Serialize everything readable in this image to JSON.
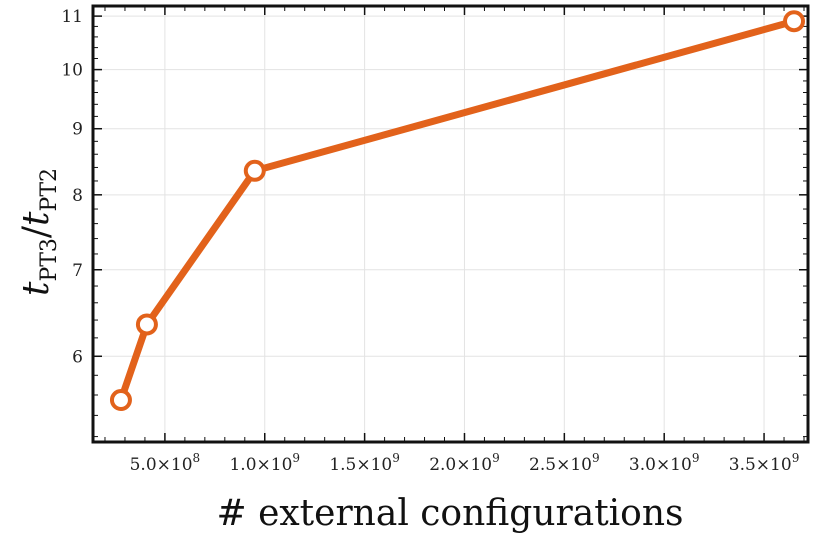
{
  "chart_data": {
    "type": "line",
    "title": "",
    "xlabel": "# external configurations",
    "ylabel": {
      "main": "t",
      "numerator_sub": "PT3",
      "slash": "/",
      "denominator_sub": "PT2"
    },
    "x": [
      280000000,
      410000000,
      950000000,
      3650000000
    ],
    "series": [
      {
        "values": [
          5.55,
          6.35,
          8.35,
          10.9
        ]
      }
    ],
    "xlim": [
      140000000,
      3720000000
    ],
    "ylim": [
      5.15,
      11.2
    ],
    "y_scale": "log",
    "grid": true,
    "color": "#e2621b",
    "x_ticks": [
      {
        "value": 500000000,
        "mantissa": "5.0",
        "exp": "8"
      },
      {
        "value": 1000000000,
        "mantissa": "1.0",
        "exp": "9"
      },
      {
        "value": 1500000000,
        "mantissa": "1.5",
        "exp": "9"
      },
      {
        "value": 2000000000,
        "mantissa": "2.0",
        "exp": "9"
      },
      {
        "value": 2500000000,
        "mantissa": "2.5",
        "exp": "9"
      },
      {
        "value": 3000000000,
        "mantissa": "3.0",
        "exp": "9"
      },
      {
        "value": 3500000000,
        "mantissa": "3.5",
        "exp": "9"
      }
    ],
    "times_sign": "×",
    "base": "10",
    "y_ticks": [
      6,
      7,
      8,
      9,
      10,
      11
    ]
  }
}
